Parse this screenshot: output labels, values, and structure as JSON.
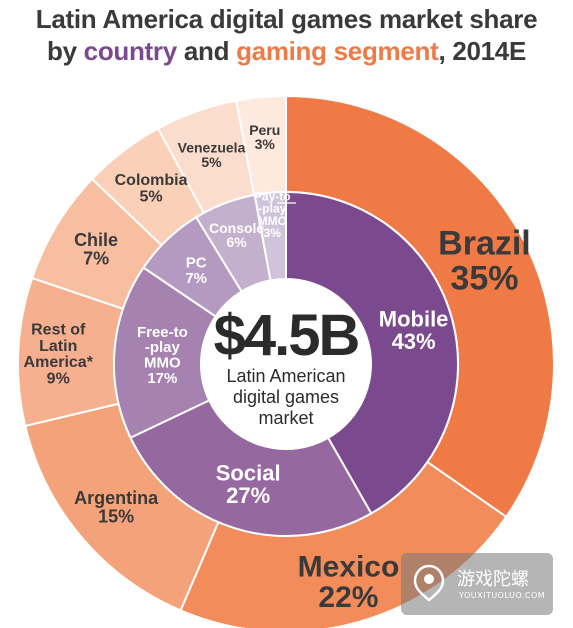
{
  "title": {
    "line1": "Latin America digital games market share",
    "line2_prefix": "by ",
    "line2_country": "country",
    "line2_middle": " and ",
    "line2_segment": "gaming segment",
    "line2_suffix": ", 2014E"
  },
  "center": {
    "value": "$4.5B",
    "line1": "Latin American",
    "line2": "digital games",
    "line3": "market"
  },
  "colors": {
    "title_country": "#7b4a8e",
    "title_segment": "#ef7a45",
    "outer_brazil": "#ef7a45",
    "outer_mexico": "#f28c5a",
    "outer_argentina": "#f4a27a",
    "outer_rest": "#f6b090",
    "outer_chile": "#f8bea0",
    "outer_colombia": "#fad0b8",
    "outer_venezuela": "#fbddcd",
    "outer_peru": "#fde9dd",
    "inner_mobile": "#7b4a8e",
    "inner_social": "#95699f",
    "inner_f2p": "#a682b0",
    "inner_pc": "#b49ac0",
    "inner_console": "#c3b0cd",
    "inner_p2p": "#d1c3da"
  },
  "watermark": {
    "text_cn": "游戏陀螺",
    "text_en": "YOUXITUOLUO.COM"
  },
  "chart_data": {
    "type": "pie",
    "rings": [
      {
        "name": "country",
        "labels": [
          "Brazil",
          "Mexico",
          "Argentina",
          "Rest of Latin America*",
          "Chile",
          "Colombia",
          "Venezuela",
          "Peru"
        ],
        "label_lines": [
          [
            "Brazil"
          ],
          [
            "Mexico"
          ],
          [
            "Argentina"
          ],
          [
            "Rest of",
            "Latin",
            "America*"
          ],
          [
            "Chile"
          ],
          [
            "Colombia"
          ],
          [
            "Venezuela"
          ],
          [
            "Peru"
          ]
        ],
        "values": [
          35,
          22,
          15,
          9,
          7,
          5,
          5,
          3
        ],
        "value_labels": [
          "35%",
          "22%",
          "15%",
          "9%",
          "7%",
          "5%",
          "5%",
          "3%"
        ]
      },
      {
        "name": "segment",
        "labels": [
          "Mobile",
          "Social",
          "Free-to-play MMO",
          "PC",
          "Console",
          "Pay-to-play MMO"
        ],
        "label_lines": [
          [
            "Mobile"
          ],
          [
            "Social"
          ],
          [
            "Free-to",
            "-play",
            "MMO"
          ],
          [
            "PC"
          ],
          [
            "Console"
          ],
          [
            "Pay-to",
            "-play",
            "MMO"
          ]
        ],
        "values": [
          43,
          27,
          17,
          7,
          6,
          3
        ],
        "value_labels": [
          "43%",
          "27%",
          "17%",
          "7%",
          "6%",
          "3%"
        ]
      }
    ]
  }
}
